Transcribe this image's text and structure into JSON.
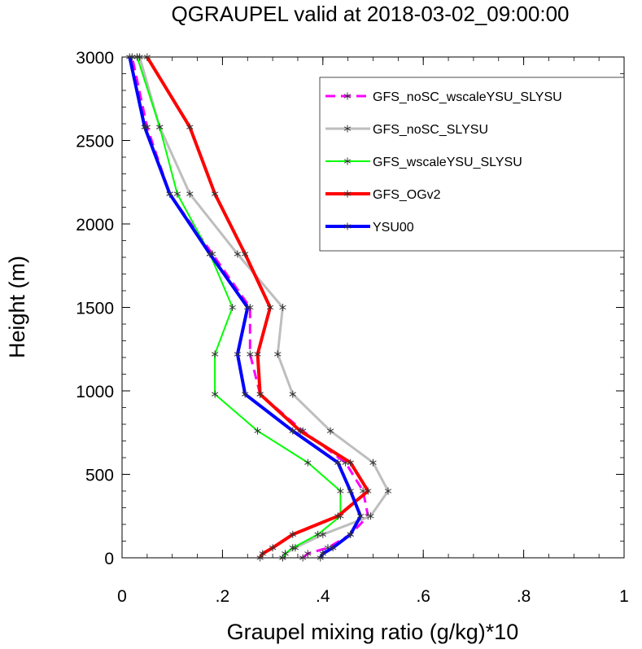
{
  "chart_data": {
    "type": "line",
    "title": "QGRAUPEL valid at 2018-03-02_09:00:00",
    "xlabel": "Graupel mixing ratio (g/kg)*10",
    "ylabel": "Height (m)",
    "xlim": [
      0,
      1
    ],
    "ylim": [
      0,
      3000
    ],
    "xticks": [
      0,
      0.2,
      0.4,
      0.6,
      0.8,
      1
    ],
    "xtick_labels": [
      "0",
      ".2",
      ".4",
      ".6",
      ".8",
      "1"
    ],
    "yticks": [
      0,
      500,
      1000,
      1500,
      2000,
      2500,
      3000
    ],
    "ytick_labels": [
      "0",
      "500",
      "1000",
      "1500",
      "2000",
      "2500",
      "3000"
    ],
    "legend_position": "top-right",
    "grid": false,
    "levels": [
      0,
      25,
      60,
      140,
      250,
      400,
      570,
      760,
      980,
      1220,
      1500,
      1820,
      2180,
      2580,
      3000
    ],
    "series": [
      {
        "name": "GFS_noSC_wscaleYSU_SLYSU",
        "color": "#ff00ff",
        "dashed": true,
        "width": 3,
        "values": [
          0.36,
          0.37,
          0.41,
          0.455,
          0.49,
          0.48,
          0.445,
          0.36,
          0.275,
          0.255,
          0.255,
          0.18,
          0.095,
          0.05,
          0.02
        ]
      },
      {
        "name": "GFS_noSC_SLYSU",
        "color": "#bebebe",
        "dashed": false,
        "width": 3,
        "values": [
          0.32,
          0.325,
          0.345,
          0.4,
          0.495,
          0.53,
          0.5,
          0.415,
          0.34,
          0.31,
          0.32,
          0.23,
          0.135,
          0.075,
          0.035
        ]
      },
      {
        "name": "GFS_wscaleYSU_SLYSU",
        "color": "#00ff00",
        "dashed": false,
        "width": 2,
        "values": [
          0.32,
          0.325,
          0.34,
          0.39,
          0.435,
          0.435,
          0.37,
          0.27,
          0.185,
          0.185,
          0.22,
          0.175,
          0.11,
          0.075,
          0.03
        ]
      },
      {
        "name": "GFS_OGv2",
        "color": "#ff0000",
        "dashed": false,
        "width": 4,
        "values": [
          0.275,
          0.28,
          0.3,
          0.34,
          0.43,
          0.49,
          0.455,
          0.355,
          0.275,
          0.27,
          0.295,
          0.245,
          0.185,
          0.135,
          0.05
        ]
      },
      {
        "name": "YSU00",
        "color": "#0000ff",
        "dashed": false,
        "width": 4,
        "values": [
          0.395,
          0.4,
          0.42,
          0.455,
          0.475,
          0.455,
          0.43,
          0.34,
          0.245,
          0.23,
          0.25,
          0.175,
          0.095,
          0.045,
          0.015
        ]
      }
    ]
  }
}
